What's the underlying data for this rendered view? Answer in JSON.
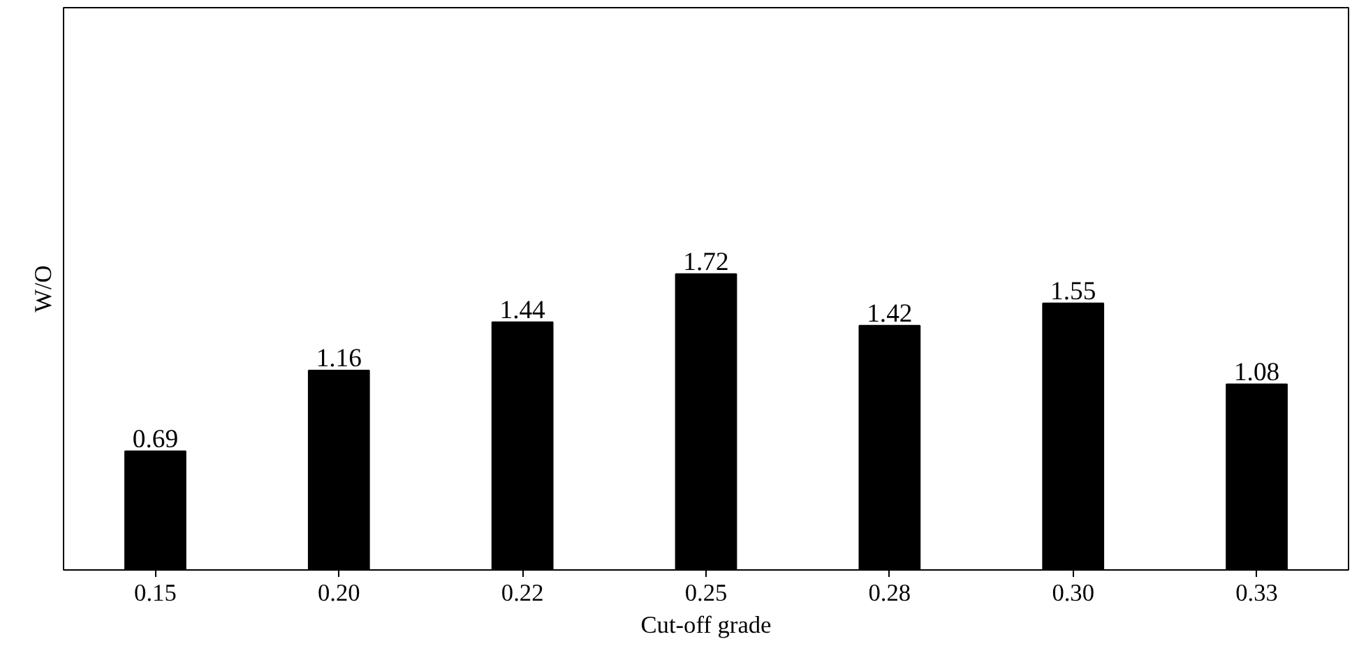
{
  "chart_data": {
    "type": "bar",
    "xlabel": "Cut-off grade",
    "ylabel": "W/O",
    "categories": [
      "0.15",
      "0.20",
      "0.22",
      "0.25",
      "0.28",
      "0.30",
      "0.33"
    ],
    "values": [
      0.69,
      1.16,
      1.44,
      1.72,
      1.42,
      1.55,
      1.08
    ],
    "color": "#000000",
    "data_labels": true,
    "tick_labels": "x",
    "grid": false
  }
}
